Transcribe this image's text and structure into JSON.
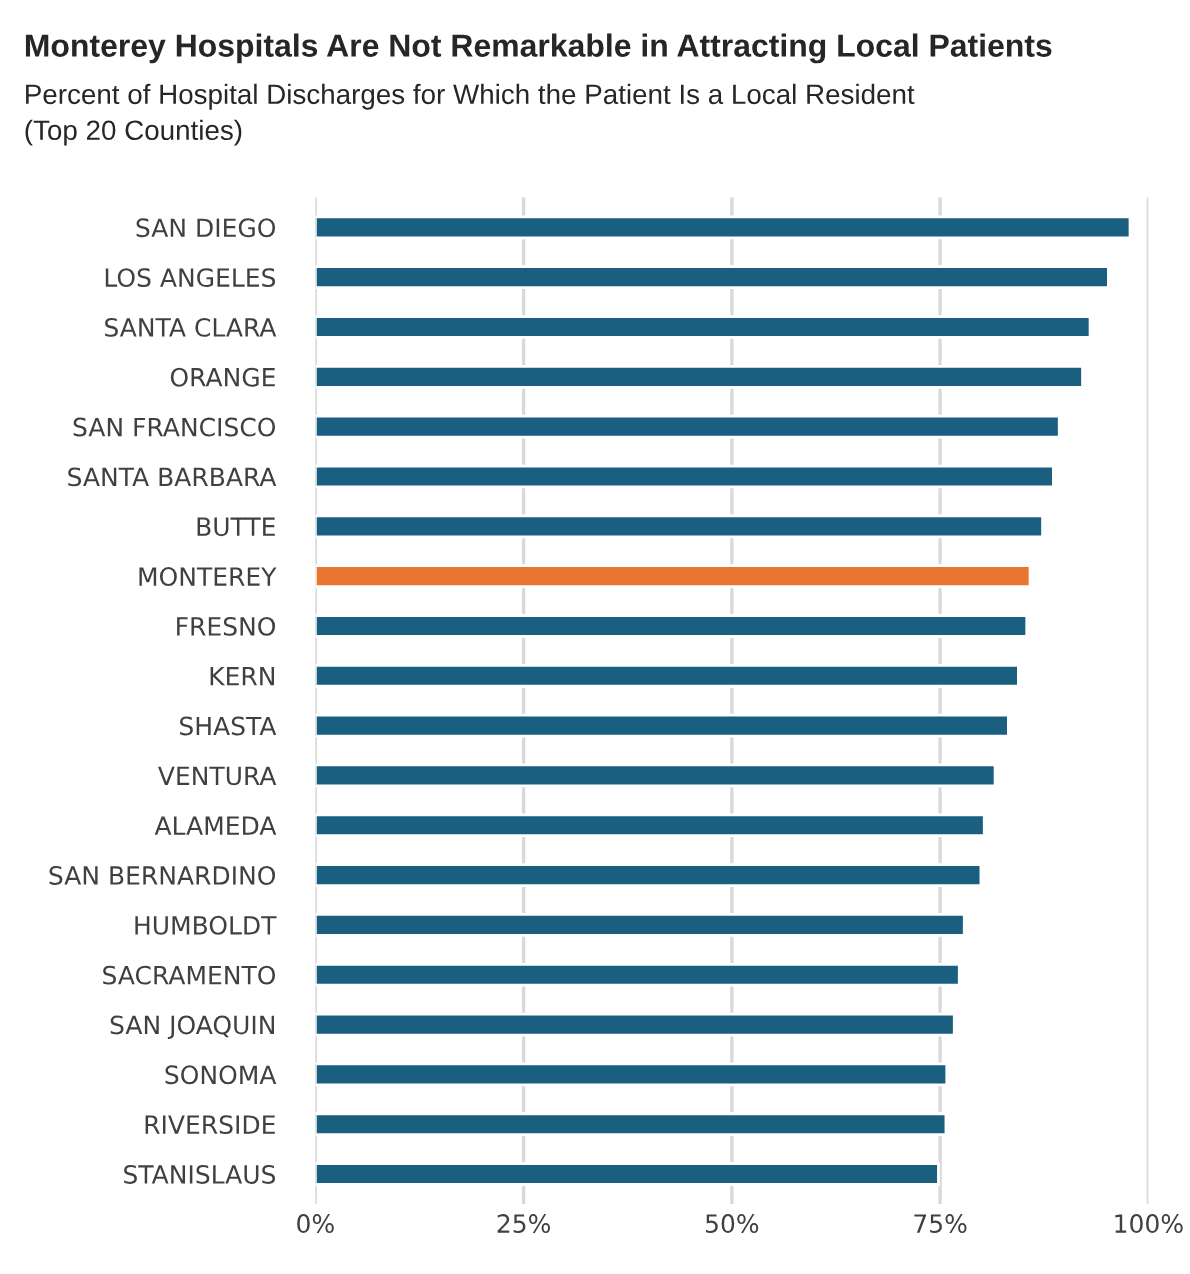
{
  "chart_data": {
    "type": "bar",
    "orientation": "horizontal",
    "title": "Monterey Hospitals Are Not Remarkable in Attracting Local Patients",
    "subtitle": "Percent of Hospital Discharges for Which the Patient Is a Local Resident\n(Top 20 Counties)",
    "categories": [
      "SAN DIEGO",
      "LOS ANGELES",
      "SANTA CLARA",
      "ORANGE",
      "SAN FRANCISCO",
      "SANTA BARBARA",
      "BUTTE",
      "MONTEREY",
      "FRESNO",
      "KERN",
      "SHASTA",
      "VENTURA",
      "ALAMEDA",
      "SAN BERNARDINO",
      "HUMBOLDT",
      "SACRAMENTO",
      "SAN JOAQUIN",
      "SONOMA",
      "RIVERSIDE",
      "STANISLAUS"
    ],
    "values": [
      97.8,
      95.2,
      93.0,
      92.1,
      89.3,
      88.6,
      87.3,
      85.8,
      85.4,
      84.4,
      83.2,
      81.6,
      80.3,
      79.9,
      77.9,
      77.3,
      76.7,
      75.8,
      75.7,
      74.8
    ],
    "colors": [
      "#1a5e80",
      "#1a5e80",
      "#1a5e80",
      "#1a5e80",
      "#1a5e80",
      "#1a5e80",
      "#1a5e80",
      "#e87530",
      "#1a5e80",
      "#1a5e80",
      "#1a5e80",
      "#1a5e80",
      "#1a5e80",
      "#1a5e80",
      "#1a5e80",
      "#1a5e80",
      "#1a5e80",
      "#1a5e80",
      "#1a5e80",
      "#1a5e80"
    ],
    "xlim": [
      0,
      100
    ],
    "xticks": [
      {
        "value": 0,
        "label": "0%"
      },
      {
        "value": 25,
        "label": "25%"
      },
      {
        "value": 50,
        "label": "50%"
      },
      {
        "value": 75,
        "label": "75%"
      },
      {
        "value": 100,
        "label": "100%"
      }
    ],
    "grid": "x",
    "legend": false
  }
}
